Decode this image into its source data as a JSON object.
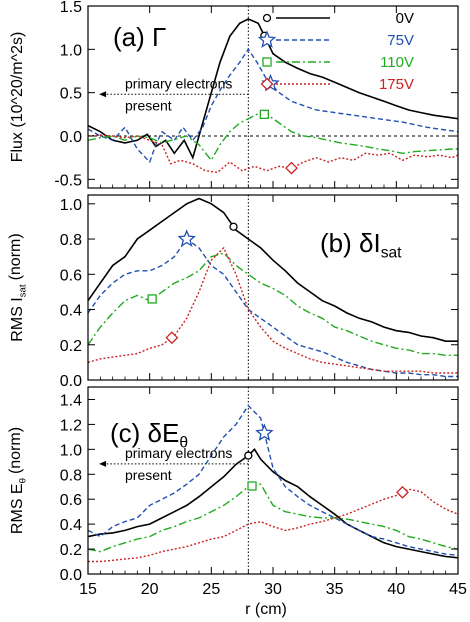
{
  "chart_data": [
    {
      "type": "line",
      "panel_label": "(a) Γ",
      "ylabel": "Flux (10^20/m^2s)",
      "xlabel": "",
      "xlim": [
        15,
        45
      ],
      "ylim": [
        -0.6,
        1.5
      ],
      "xticks": [
        "15",
        "20",
        "25",
        "30",
        "35",
        "40",
        "45"
      ],
      "yticks": [
        -0.5,
        0.0,
        0.5,
        1.0,
        1.5
      ],
      "ytick_labels": [
        "-0.5",
        "0.0",
        "0.5",
        "1.0",
        "1.5"
      ],
      "zero_line": true,
      "vline_x": 28,
      "legend_position": "top-right",
      "annotation": "primary electrons\npresent",
      "series": [
        {
          "name": "0V",
          "color": "#000000",
          "dash": "",
          "marker": "circle",
          "marker_x": 29.3,
          "x": [
            15,
            16,
            17,
            18,
            19,
            19.8,
            20.5,
            21.3,
            22,
            22.8,
            23.5,
            24.3,
            25,
            25.7,
            26.5,
            27.3,
            28,
            28.8,
            29.5,
            30,
            31,
            32,
            33,
            34,
            35,
            36,
            37,
            38,
            39,
            40,
            41,
            42,
            43,
            44,
            45
          ],
          "y": [
            0.12,
            0.05,
            -0.05,
            -0.08,
            -0.05,
            0.02,
            -0.12,
            -0.05,
            -0.2,
            -0.05,
            -0.25,
            0.15,
            0.5,
            0.85,
            1.15,
            1.3,
            1.35,
            1.3,
            1.1,
            0.95,
            0.85,
            0.78,
            0.72,
            0.68,
            0.62,
            0.56,
            0.5,
            0.45,
            0.4,
            0.35,
            0.3,
            0.27,
            0.24,
            0.22,
            0.2
          ]
        },
        {
          "name": "75V",
          "color": "#2050b0",
          "dash": "5,3",
          "marker": "star",
          "marker_x": 29.8,
          "x": [
            15,
            16,
            17,
            18,
            19,
            20,
            20.5,
            21,
            22,
            22.7,
            23.5,
            24.3,
            25,
            25.8,
            26.5,
            27.3,
            28,
            28.7,
            29.5,
            30.5,
            31.5,
            32.5,
            33.5,
            34.5,
            35.5,
            36.5,
            37.5,
            38.5,
            39.5,
            40.5,
            41.5,
            42.5,
            43.5,
            44.5,
            45
          ],
          "y": [
            0.08,
            0.0,
            -0.05,
            0.1,
            -0.15,
            -0.3,
            -0.1,
            0.05,
            -0.05,
            0.1,
            -0.05,
            0.1,
            0.35,
            0.55,
            0.7,
            0.85,
            1.0,
            0.85,
            0.65,
            0.5,
            0.4,
            0.35,
            0.3,
            0.28,
            0.26,
            0.24,
            0.22,
            0.2,
            0.18,
            0.16,
            0.13,
            0.1,
            0.08,
            0.06,
            0.05
          ]
        },
        {
          "name": "110V",
          "color": "#22aa22",
          "dash": "8,3,2,3",
          "marker": "square",
          "marker_x": 29.3,
          "x": [
            15,
            16,
            17,
            18,
            19,
            20,
            21,
            22,
            23,
            24,
            25,
            25.7,
            26.5,
            27.3,
            28,
            28.7,
            29.5,
            30.5,
            31.5,
            32.5,
            33.5,
            34.5,
            35.5,
            36.5,
            37.5,
            38.5,
            39.5,
            40.5,
            41.5,
            42.5,
            43.5,
            44.5,
            45
          ],
          "y": [
            -0.05,
            -0.02,
            0.0,
            -0.05,
            0.0,
            -0.02,
            -0.08,
            -0.04,
            0.0,
            -0.1,
            -0.28,
            -0.1,
            0.05,
            0.15,
            0.2,
            0.25,
            0.25,
            0.15,
            0.05,
            0.0,
            -0.02,
            -0.05,
            -0.08,
            -0.1,
            -0.12,
            -0.15,
            -0.17,
            -0.2,
            -0.18,
            -0.17,
            -0.16,
            -0.15,
            -0.15
          ]
        },
        {
          "name": "175V",
          "color": "#cc2222",
          "dash": "2,2",
          "marker": "diamond",
          "marker_x": 31.5,
          "x": [
            15,
            16,
            17,
            18,
            19,
            20,
            21,
            21.7,
            22.5,
            23.5,
            24.5,
            25.5,
            26.5,
            27.5,
            28.5,
            29.5,
            30.5,
            31.5,
            32.5,
            33.5,
            34.5,
            35.5,
            36.5,
            37.5,
            38.5,
            39.5,
            40.5,
            41.5,
            42.5,
            43.5,
            44.5,
            45
          ],
          "y": [
            0.0,
            0.01,
            0.0,
            -0.02,
            0.0,
            -0.05,
            -0.1,
            -0.32,
            -0.28,
            -0.32,
            -0.4,
            -0.42,
            -0.3,
            -0.4,
            -0.35,
            -0.4,
            -0.35,
            -0.37,
            -0.3,
            -0.25,
            -0.3,
            -0.25,
            -0.28,
            -0.2,
            -0.22,
            -0.2,
            -0.28,
            -0.22,
            -0.24,
            -0.22,
            -0.25,
            -0.22
          ]
        }
      ]
    },
    {
      "type": "line",
      "panel_label": "(b) δI",
      "panel_label_sub": "sat",
      "ylabel": "RMS I",
      "ylabel_sub": "sat",
      "ylabel_tail": "(norm)",
      "xlabel": "",
      "xlim": [
        15,
        45
      ],
      "ylim": [
        0.0,
        1.05
      ],
      "xticks": [
        "15",
        "20",
        "25",
        "30",
        "35",
        "40",
        "45"
      ],
      "yticks": [
        0.0,
        0.2,
        0.4,
        0.6,
        0.8,
        1.0
      ],
      "ytick_labels": [
        "0.0",
        "0.2",
        "0.4",
        "0.6",
        "0.8",
        "1.0"
      ],
      "vline_x": 28,
      "series": [
        {
          "name": "0V",
          "color": "#000000",
          "dash": "",
          "marker": "circle",
          "marker_x": 26.8,
          "x": [
            15,
            16,
            17,
            18,
            19,
            20,
            21,
            22,
            23,
            24,
            25,
            26,
            27,
            28,
            29,
            30,
            31,
            32,
            33,
            34,
            35,
            36,
            37,
            38,
            39,
            40,
            41,
            42,
            43,
            44,
            45
          ],
          "y": [
            0.45,
            0.55,
            0.65,
            0.7,
            0.8,
            0.85,
            0.9,
            0.95,
            1.0,
            1.03,
            1.0,
            0.95,
            0.85,
            0.8,
            0.75,
            0.68,
            0.62,
            0.55,
            0.5,
            0.45,
            0.42,
            0.38,
            0.35,
            0.33,
            0.3,
            0.28,
            0.27,
            0.25,
            0.24,
            0.22,
            0.22
          ]
        },
        {
          "name": "75V",
          "color": "#2050b0",
          "dash": "5,3",
          "marker": "star",
          "marker_x": 23,
          "x": [
            15,
            16,
            17,
            18,
            19,
            20,
            21,
            22,
            23,
            24,
            25,
            26,
            27,
            28,
            29,
            30,
            31,
            32,
            33,
            34,
            35,
            36,
            37,
            38,
            39,
            40,
            41,
            42,
            43,
            44,
            45
          ],
          "y": [
            0.38,
            0.48,
            0.55,
            0.6,
            0.62,
            0.62,
            0.65,
            0.7,
            0.8,
            0.75,
            0.65,
            0.6,
            0.5,
            0.4,
            0.35,
            0.3,
            0.25,
            0.2,
            0.18,
            0.16,
            0.13,
            0.1,
            0.08,
            0.06,
            0.05,
            0.04,
            0.04,
            0.03,
            0.03,
            0.02,
            0.02
          ]
        },
        {
          "name": "110V",
          "color": "#22aa22",
          "dash": "8,3,2,3",
          "marker": "square",
          "marker_x": 20.2,
          "x": [
            15,
            16,
            17,
            18,
            19,
            20,
            21,
            22,
            23,
            24,
            25,
            26,
            27,
            28,
            29,
            30,
            31,
            32,
            33,
            34,
            35,
            36,
            37,
            38,
            39,
            40,
            41,
            42,
            43,
            44,
            45
          ],
          "y": [
            0.2,
            0.3,
            0.38,
            0.45,
            0.48,
            0.45,
            0.5,
            0.55,
            0.58,
            0.62,
            0.7,
            0.72,
            0.65,
            0.6,
            0.55,
            0.52,
            0.48,
            0.42,
            0.38,
            0.35,
            0.3,
            0.28,
            0.25,
            0.22,
            0.2,
            0.18,
            0.17,
            0.15,
            0.15,
            0.14,
            0.14
          ]
        },
        {
          "name": "175V",
          "color": "#cc2222",
          "dash": "2,2",
          "marker": "diamond",
          "marker_x": 21.8,
          "x": [
            15,
            16,
            17,
            18,
            19,
            20,
            21,
            22,
            23,
            24,
            25,
            26,
            27,
            28,
            29,
            30,
            31,
            32,
            33,
            34,
            35,
            36,
            37,
            38,
            39,
            40,
            41,
            42,
            43,
            44,
            45
          ],
          "y": [
            0.1,
            0.12,
            0.13,
            0.14,
            0.15,
            0.18,
            0.2,
            0.25,
            0.35,
            0.5,
            0.68,
            0.75,
            0.6,
            0.4,
            0.3,
            0.22,
            0.18,
            0.15,
            0.12,
            0.1,
            0.09,
            0.08,
            0.07,
            0.06,
            0.05,
            0.05,
            0.05,
            0.05,
            0.04,
            0.04,
            0.04
          ]
        }
      ]
    },
    {
      "type": "line",
      "panel_label": "(c) δE",
      "panel_label_sub": "θ",
      "ylabel": "RMS E",
      "ylabel_sub": "θ",
      "ylabel_tail": "(norm)",
      "xlabel": "r (cm)",
      "xlim": [
        15,
        45
      ],
      "ylim": [
        0.0,
        1.5
      ],
      "xticks": [
        "15",
        "20",
        "25",
        "30",
        "35",
        "40",
        "45"
      ],
      "yticks": [
        0.0,
        0.2,
        0.4,
        0.6,
        0.8,
        1.0,
        1.2,
        1.4
      ],
      "ytick_labels": [
        "0.0",
        "0.2",
        "0.4",
        "0.6",
        "0.8",
        "1.0",
        "1.2",
        "1.4"
      ],
      "vline_x": 28,
      "annotation": "primary electrons\npresent",
      "series": [
        {
          "name": "0V",
          "color": "#000000",
          "dash": "",
          "marker": "circle",
          "marker_x": 28,
          "x": [
            15,
            16,
            17,
            18,
            19,
            20,
            21,
            22,
            23,
            24,
            25,
            26,
            27,
            28,
            28.5,
            29,
            30,
            31,
            32,
            33,
            34,
            35,
            36,
            37,
            38,
            39,
            40,
            41,
            42,
            43,
            44,
            45
          ],
          "y": [
            0.3,
            0.32,
            0.33,
            0.35,
            0.38,
            0.4,
            0.45,
            0.5,
            0.55,
            0.62,
            0.7,
            0.78,
            0.88,
            0.95,
            1.0,
            0.92,
            0.82,
            0.75,
            0.7,
            0.62,
            0.55,
            0.48,
            0.4,
            0.35,
            0.3,
            0.25,
            0.22,
            0.2,
            0.18,
            0.16,
            0.14,
            0.13
          ]
        },
        {
          "name": "75V",
          "color": "#2050b0",
          "dash": "5,3",
          "marker": "star",
          "marker_x": 29.3,
          "x": [
            15,
            16,
            17,
            18,
            19,
            20,
            21,
            22,
            23,
            24,
            25,
            26,
            27,
            28,
            29,
            30,
            31,
            32,
            33,
            34,
            35,
            36,
            37,
            38,
            39,
            40,
            41,
            42,
            43,
            44,
            45
          ],
          "y": [
            0.35,
            0.3,
            0.38,
            0.42,
            0.45,
            0.55,
            0.6,
            0.65,
            0.72,
            0.8,
            0.95,
            1.1,
            1.2,
            1.35,
            1.25,
            0.85,
            0.7,
            0.62,
            0.55,
            0.5,
            0.45,
            0.4,
            0.35,
            0.3,
            0.28,
            0.25,
            0.22,
            0.2,
            0.18,
            0.16,
            0.15
          ]
        },
        {
          "name": "110V",
          "color": "#22aa22",
          "dash": "8,3,2,3",
          "marker": "square",
          "marker_x": 28.3,
          "x": [
            15,
            16,
            17,
            18,
            19,
            20,
            21,
            22,
            23,
            24,
            25,
            26,
            27,
            28,
            29,
            30,
            31,
            32,
            33,
            34,
            35,
            36,
            37,
            38,
            39,
            40,
            41,
            42,
            43,
            44,
            45
          ],
          "y": [
            0.2,
            0.18,
            0.22,
            0.25,
            0.28,
            0.3,
            0.35,
            0.38,
            0.42,
            0.45,
            0.5,
            0.55,
            0.62,
            0.7,
            0.72,
            0.55,
            0.5,
            0.48,
            0.46,
            0.45,
            0.45,
            0.44,
            0.42,
            0.4,
            0.38,
            0.35,
            0.3,
            0.28,
            0.25,
            0.22,
            0.2
          ]
        },
        {
          "name": "175V",
          "color": "#cc2222",
          "dash": "2,2",
          "marker": "diamond",
          "marker_x": 40.5,
          "x": [
            15,
            16,
            17,
            18,
            19,
            20,
            21,
            22,
            23,
            24,
            25,
            26,
            27,
            28,
            29,
            30,
            31,
            32,
            33,
            34,
            35,
            36,
            37,
            38,
            39,
            40,
            41,
            42,
            43,
            44,
            45
          ],
          "y": [
            0.1,
            0.1,
            0.11,
            0.12,
            0.13,
            0.15,
            0.18,
            0.2,
            0.22,
            0.25,
            0.28,
            0.3,
            0.35,
            0.4,
            0.42,
            0.38,
            0.35,
            0.37,
            0.4,
            0.42,
            0.45,
            0.48,
            0.52,
            0.56,
            0.6,
            0.63,
            0.68,
            0.66,
            0.58,
            0.52,
            0.48
          ]
        }
      ]
    }
  ]
}
